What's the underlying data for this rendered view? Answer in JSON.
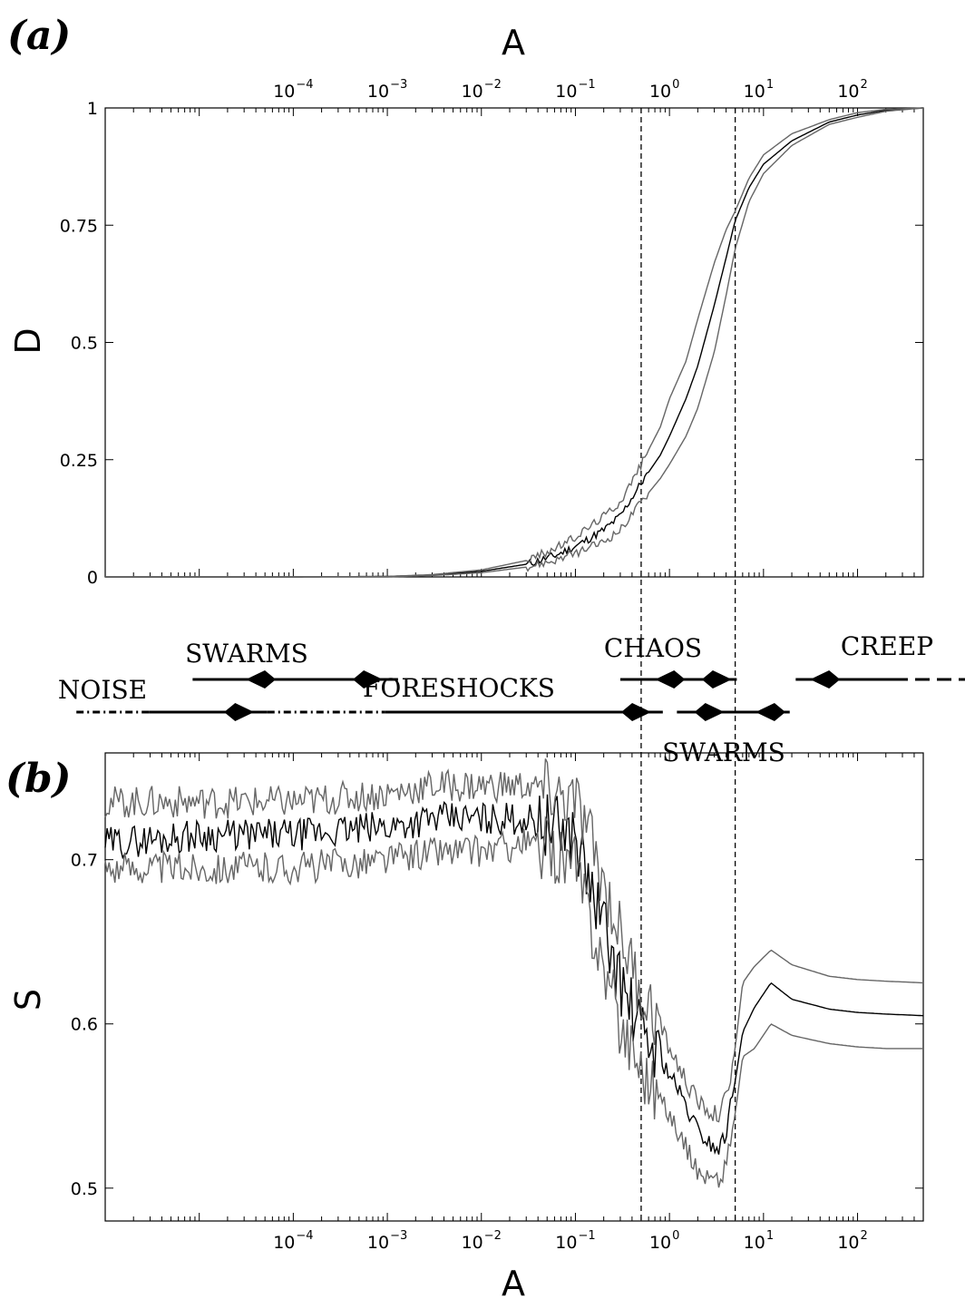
{
  "panels": [
    {
      "id": "a",
      "label": "(a)",
      "xlabel": "A",
      "ylabel": "D",
      "xtick_base": "10",
      "xtick_exponents": [
        "−4",
        "−3",
        "−2",
        "−1",
        "0",
        "1",
        "2"
      ],
      "yticks": [
        "0",
        "0.25",
        "0.5",
        "0.75",
        "1"
      ]
    },
    {
      "id": "b",
      "label": "(b)",
      "xlabel": "A",
      "ylabel": "S",
      "xtick_base": "10",
      "xtick_exponents": [
        "−4",
        "−3",
        "−2",
        "−1",
        "0",
        "1",
        "2"
      ],
      "yticks": [
        "0.5",
        "0.6",
        "0.7"
      ]
    }
  ],
  "regimes": [
    {
      "label": "NOISE",
      "x_start": 1.2e-06,
      "x_end": 0.00095,
      "arrows": [
        3e-05
      ],
      "direction": "right",
      "style": "dashdot"
    },
    {
      "label": "SWARMS",
      "x_start": 8.5e-06,
      "x_end": 0.0013,
      "arrows": [
        4e-05,
        0.0007
      ],
      "direction": "outward",
      "style": "solid"
    },
    {
      "label": "FORESHOCKS",
      "x_start": 0.00095,
      "x_end": 0.85,
      "arrows": [
        0.5
      ],
      "direction": "right",
      "style": "solid"
    },
    {
      "label": "CHAOS",
      "x_start": 0.3,
      "x_end": 5.2,
      "arrows": [
        0.9,
        3.6
      ],
      "direction": "outward",
      "style": "solid"
    },
    {
      "label": "SWARMS",
      "x_start": 1.2,
      "x_end": 19,
      "arrows": [
        3.0,
        10.5
      ],
      "direction": "inward",
      "style": "solid"
    },
    {
      "label": "CREEP",
      "x_start": 22,
      "x_end": 1000,
      "arrows": [
        40
      ],
      "direction": "left",
      "style": "solid-then-dashed"
    }
  ],
  "chart_data": [
    {
      "type": "line",
      "title": "",
      "xlabel": "A",
      "ylabel": "D",
      "x_scale": "log",
      "xlim": [
        1e-06,
        500
      ],
      "ylim": [
        0,
        1
      ],
      "grid": false,
      "vlines": [
        0.5,
        5
      ],
      "x": [
        1e-06,
        1e-05,
        0.0001,
        0.001,
        0.003,
        0.01,
        0.03,
        0.06,
        0.1,
        0.2,
        0.3,
        0.5,
        0.8,
        1,
        1.5,
        2,
        3,
        4,
        5,
        7,
        10,
        20,
        50,
        100,
        200,
        500
      ],
      "series": [
        {
          "role": "mean",
          "values": [
            0.0,
            0.0,
            0.0,
            0.001,
            0.004,
            0.012,
            0.027,
            0.045,
            0.065,
            0.1,
            0.13,
            0.2,
            0.26,
            0.3,
            0.38,
            0.45,
            0.58,
            0.68,
            0.76,
            0.83,
            0.88,
            0.93,
            0.97,
            0.985,
            0.995,
            1.0
          ]
        },
        {
          "role": "upper",
          "values": [
            0.0,
            0.0,
            0.0,
            0.001,
            0.005,
            0.015,
            0.035,
            0.06,
            0.085,
            0.13,
            0.16,
            0.24,
            0.32,
            0.38,
            0.46,
            0.55,
            0.67,
            0.74,
            0.78,
            0.85,
            0.9,
            0.945,
            0.975,
            0.99,
            0.997,
            1.0
          ]
        },
        {
          "role": "lower",
          "values": [
            0.0,
            0.0,
            0.0,
            0.0,
            0.003,
            0.009,
            0.021,
            0.035,
            0.05,
            0.075,
            0.1,
            0.16,
            0.21,
            0.24,
            0.3,
            0.36,
            0.48,
            0.6,
            0.7,
            0.8,
            0.86,
            0.92,
            0.965,
            0.98,
            0.993,
            1.0
          ]
        }
      ]
    },
    {
      "type": "line",
      "title": "",
      "xlabel": "A",
      "ylabel": "S",
      "x_scale": "log",
      "xlim": [
        1e-06,
        500
      ],
      "ylim": [
        0.48,
        0.765
      ],
      "grid": false,
      "vlines": [
        0.5,
        5
      ],
      "x": [
        1e-06,
        1e-05,
        0.0001,
        0.001,
        0.003,
        0.01,
        0.03,
        0.06,
        0.1,
        0.15,
        0.2,
        0.3,
        0.5,
        0.7,
        1,
        1.5,
        2,
        3,
        3.5,
        4,
        5,
        6,
        8,
        12,
        20,
        50,
        100,
        200,
        500
      ],
      "series": [
        {
          "role": "mean",
          "values": [
            0.71,
            0.715,
            0.715,
            0.72,
            0.725,
            0.725,
            0.725,
            0.72,
            0.715,
            0.68,
            0.66,
            0.625,
            0.595,
            0.585,
            0.57,
            0.55,
            0.535,
            0.525,
            0.525,
            0.535,
            0.565,
            0.595,
            0.61,
            0.625,
            0.615,
            0.609,
            0.607,
            0.606,
            0.605
          ]
        },
        {
          "role": "upper",
          "values": [
            0.735,
            0.735,
            0.735,
            0.74,
            0.745,
            0.745,
            0.745,
            0.74,
            0.735,
            0.71,
            0.685,
            0.655,
            0.62,
            0.605,
            0.585,
            0.565,
            0.552,
            0.545,
            0.545,
            0.555,
            0.585,
            0.625,
            0.635,
            0.645,
            0.636,
            0.629,
            0.627,
            0.626,
            0.625
          ]
        },
        {
          "role": "lower",
          "values": [
            0.695,
            0.695,
            0.695,
            0.7,
            0.705,
            0.705,
            0.71,
            0.705,
            0.695,
            0.66,
            0.635,
            0.6,
            0.575,
            0.56,
            0.545,
            0.525,
            0.51,
            0.505,
            0.505,
            0.515,
            0.545,
            0.58,
            0.585,
            0.6,
            0.593,
            0.588,
            0.586,
            0.585,
            0.585
          ]
        }
      ]
    }
  ]
}
